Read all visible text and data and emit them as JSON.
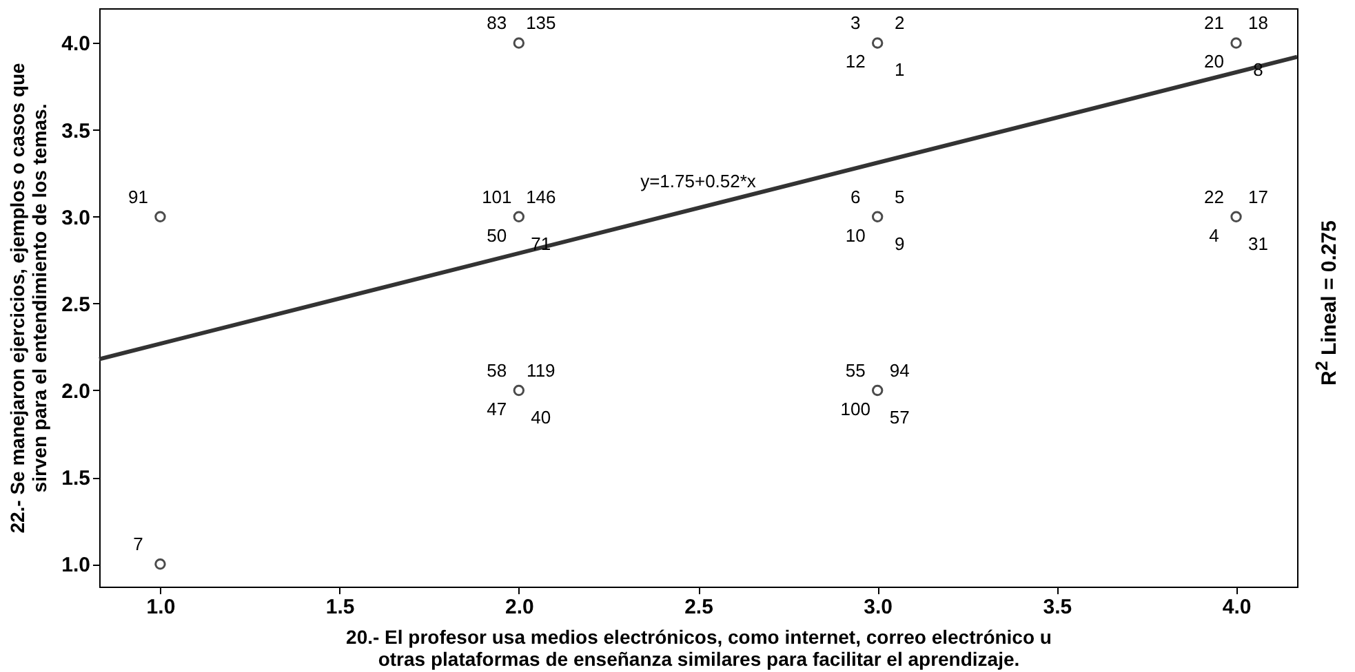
{
  "chart_data": {
    "type": "scatter",
    "xlabel": "20.- El profesor usa medios electrónicos, como internet, correo electrónico u otras plataformas de enseñanza similares para facilitar el aprendizaje.",
    "ylabel": "22.- Se manejaron ejercicios, ejemplos o casos que sirven para el entendimiento de los temas.",
    "xlim": [
      0.83,
      4.17
    ],
    "ylim": [
      0.87,
      4.2
    ],
    "xticks": [
      {
        "value": 1,
        "label": "1.0"
      },
      {
        "value": 1.5,
        "label": "1.5"
      },
      {
        "value": 2,
        "label": "2.0"
      },
      {
        "value": 2.5,
        "label": "2.5"
      },
      {
        "value": 3,
        "label": "3.0"
      },
      {
        "value": 3.5,
        "label": "3.5"
      },
      {
        "value": 4,
        "label": "4.0"
      }
    ],
    "yticks": [
      {
        "value": 1,
        "label": "1.0"
      },
      {
        "value": 1.5,
        "label": "1.5"
      },
      {
        "value": 2,
        "label": "2.0"
      },
      {
        "value": 2.5,
        "label": "2.5"
      },
      {
        "value": 3,
        "label": "3.0"
      },
      {
        "value": 3.5,
        "label": "3.5"
      },
      {
        "value": 4,
        "label": "4.0"
      }
    ],
    "grid": false,
    "marker": "circle",
    "series": [
      {
        "color": "#000000",
        "x": [
          1,
          1,
          2,
          2,
          2,
          3,
          3,
          3,
          4,
          4
        ],
        "values": [
          1,
          3,
          2,
          3,
          4,
          2,
          3,
          4,
          3,
          4
        ]
      },
      {
        "type": "line",
        "marker": "none",
        "color": "#333333",
        "x": [
          0.83,
          4.17
        ],
        "values": [
          2.18,
          3.92
        ]
      }
    ],
    "annotations": [
      {
        "text": "7",
        "x": 1,
        "y": 1
      },
      {
        "text": "91",
        "x": 1,
        "y": 3
      },
      {
        "text": "83",
        "x": 2,
        "y": 4
      },
      {
        "text": "135",
        "x": 2,
        "y": 4
      },
      {
        "text": "101",
        "x": 2,
        "y": 3
      },
      {
        "text": "146",
        "x": 2,
        "y": 3
      },
      {
        "text": "50",
        "x": 2,
        "y": 3
      },
      {
        "text": "71",
        "x": 2,
        "y": 3
      },
      {
        "text": "58",
        "x": 2,
        "y": 2
      },
      {
        "text": "119",
        "x": 2,
        "y": 2
      },
      {
        "text": "47",
        "x": 2,
        "y": 2
      },
      {
        "text": "40",
        "x": 2,
        "y": 2
      },
      {
        "text": "3",
        "x": 3,
        "y": 4
      },
      {
        "text": "2",
        "x": 3,
        "y": 4
      },
      {
        "text": "12",
        "x": 3,
        "y": 4
      },
      {
        "text": "1",
        "x": 3,
        "y": 4
      },
      {
        "text": "6",
        "x": 3,
        "y": 3
      },
      {
        "text": "5",
        "x": 3,
        "y": 3
      },
      {
        "text": "10",
        "x": 3,
        "y": 3
      },
      {
        "text": "9",
        "x": 3,
        "y": 3
      },
      {
        "text": "55",
        "x": 3,
        "y": 2
      },
      {
        "text": "94",
        "x": 3,
        "y": 2
      },
      {
        "text": "100",
        "x": 3,
        "y": 2
      },
      {
        "text": "57",
        "x": 3,
        "y": 2
      },
      {
        "text": "21",
        "x": 4,
        "y": 4
      },
      {
        "text": "18",
        "x": 4,
        "y": 4
      },
      {
        "text": "20",
        "x": 4,
        "y": 4
      },
      {
        "text": "8",
        "x": 4,
        "y": 4
      },
      {
        "text": "22",
        "x": 4,
        "y": 3
      },
      {
        "text": "17",
        "x": 4,
        "y": 3
      },
      {
        "text": "4",
        "x": 4,
        "y": 3
      },
      {
        "text": "31",
        "x": 4,
        "y": 3
      },
      "y=1.75+0.52*x",
      "R$^{2}$ Lineal = 0.275"
    ]
  }
}
